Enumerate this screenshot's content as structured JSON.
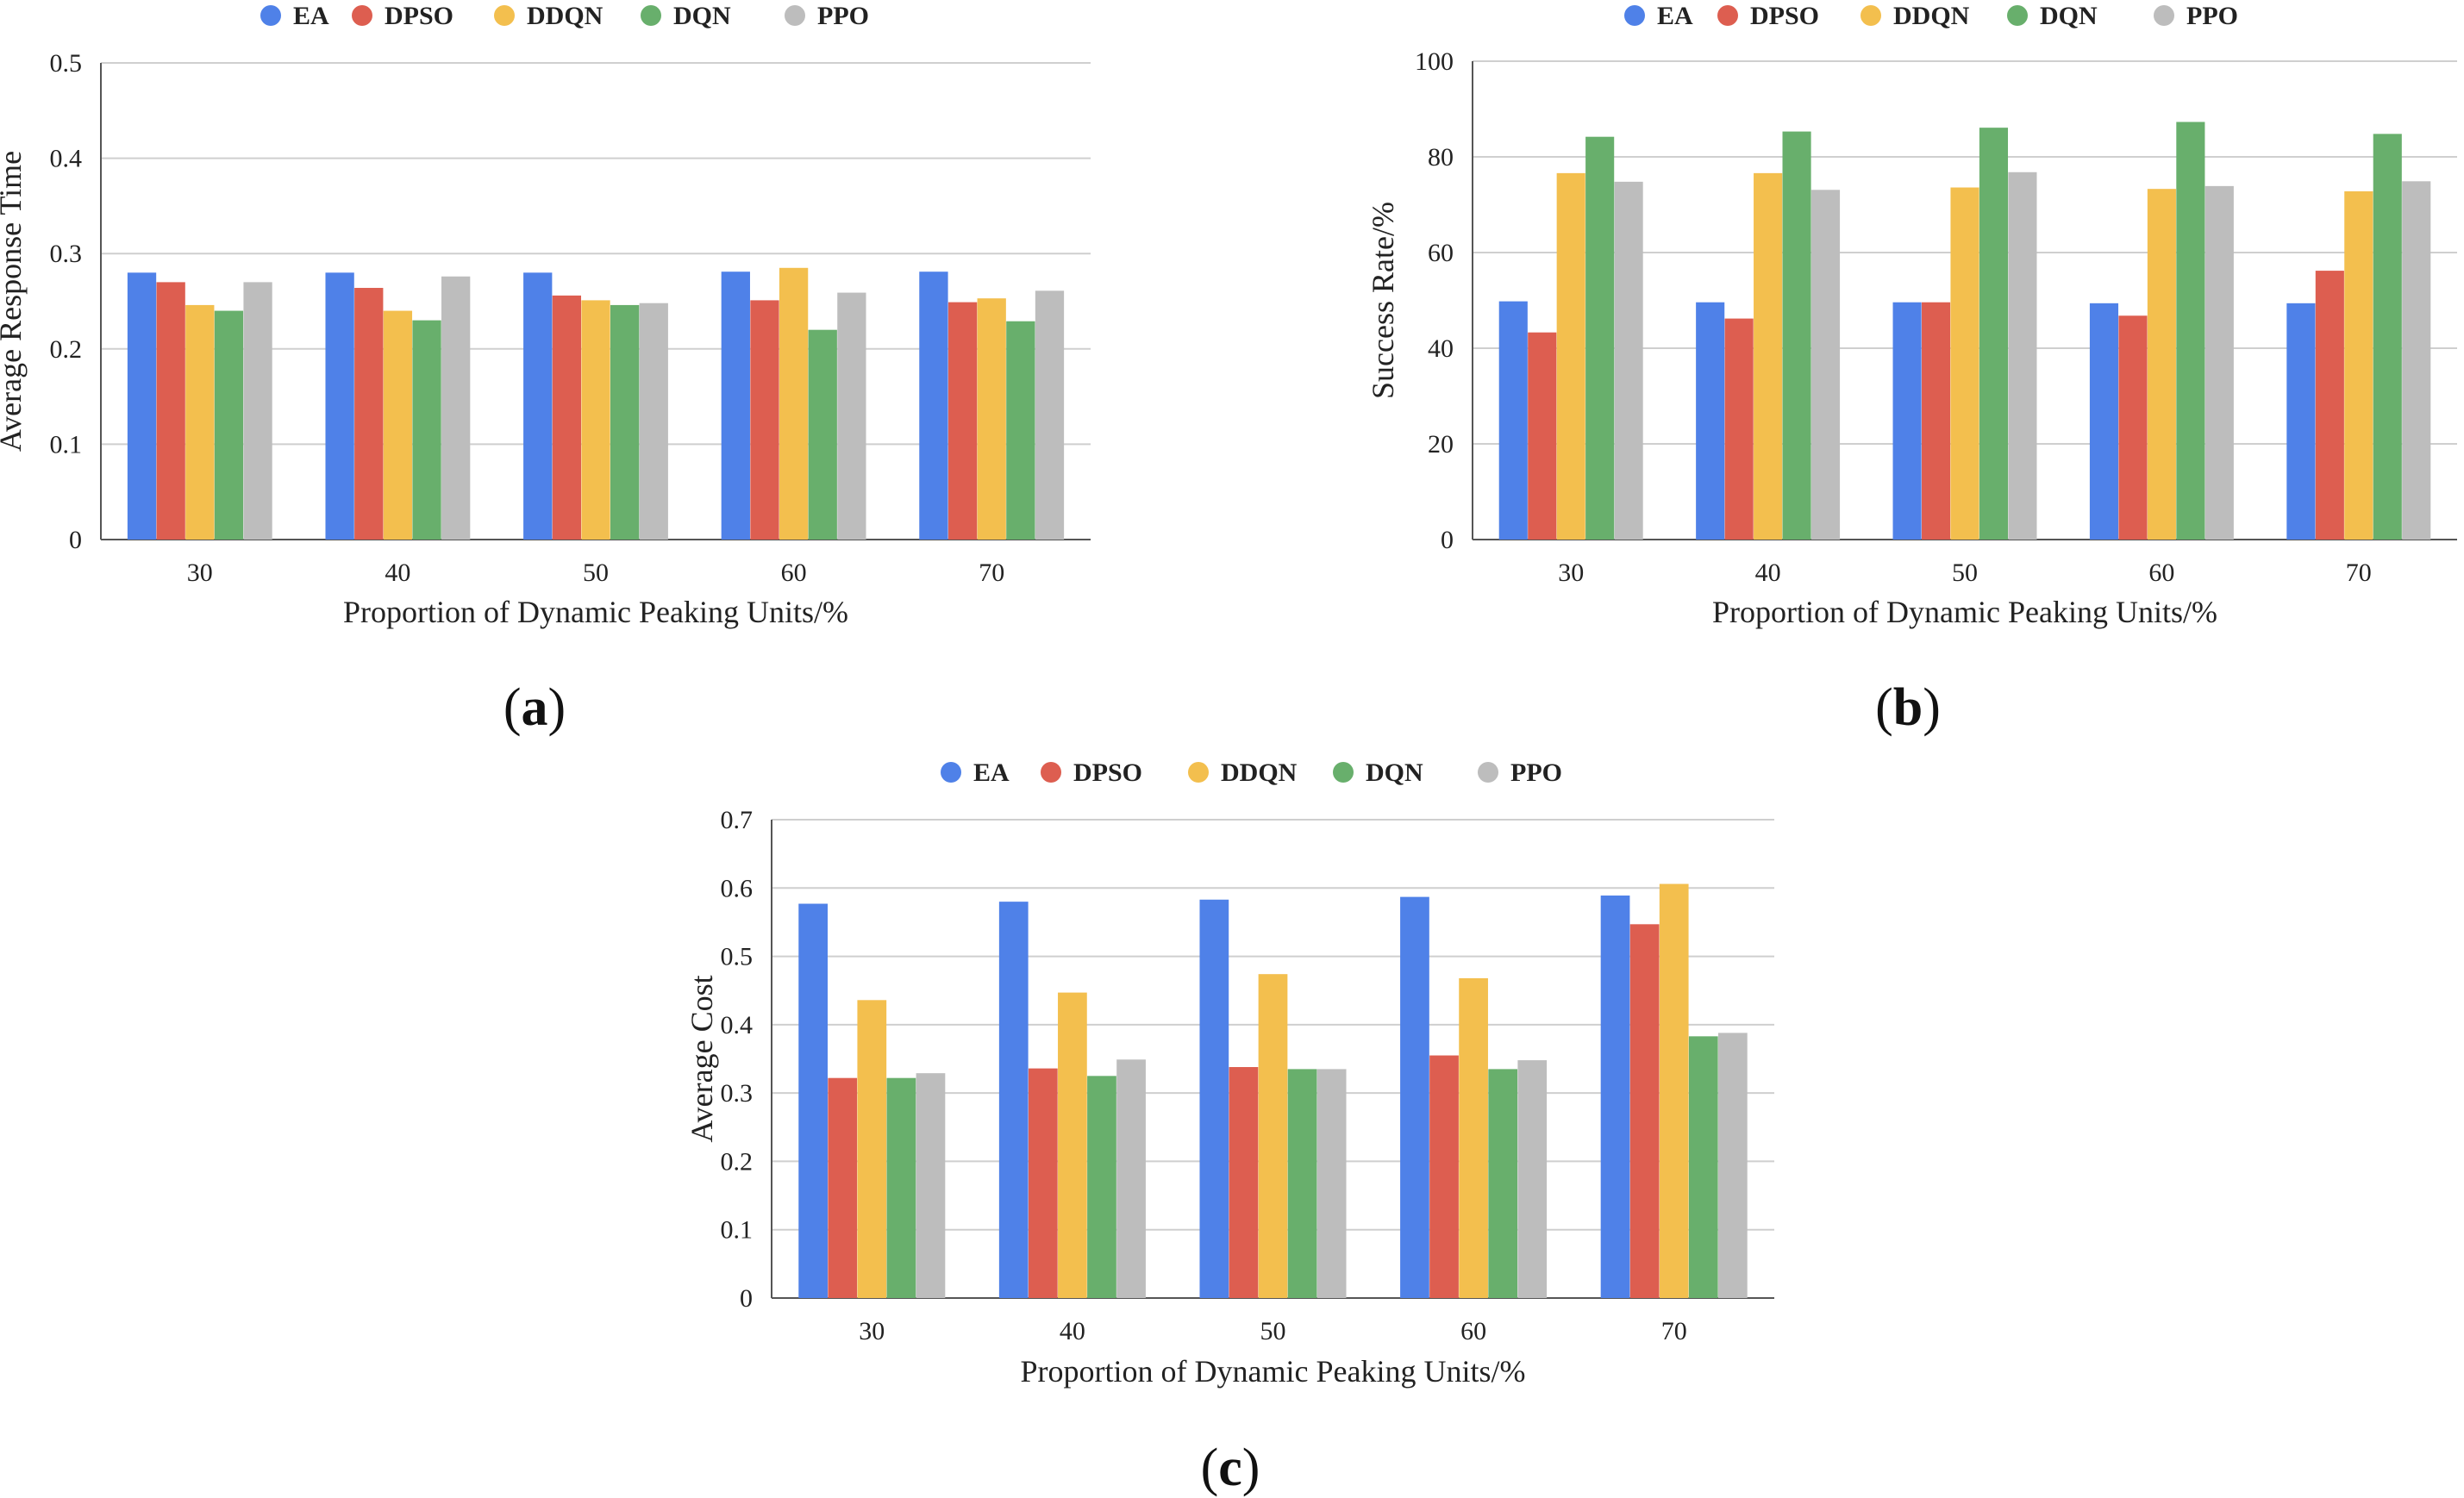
{
  "colors": {
    "EA": "#4F81E8",
    "DPSO": "#DD5E50",
    "DDQN": "#F3BF4E",
    "DQN": "#68AF6C",
    "PPO": "#BDBDBD",
    "grid": "#cfcfcf",
    "axis": "#555555"
  },
  "chart_data": [
    {
      "id": "a",
      "type": "bar",
      "panel_label": "(a)",
      "panel_letter": "a",
      "title": "",
      "xlabel": "Proportion of Dynamic Peaking Units/%",
      "ylabel": "Average Response Time",
      "ylim": [
        0,
        0.5
      ],
      "yticks": [
        "0",
        "0.1",
        "0.2",
        "0.3",
        "0.4",
        "0.5"
      ],
      "ytick_values": [
        0,
        0.1,
        0.2,
        0.3,
        0.4,
        0.5
      ],
      "categories": [
        "30",
        "40",
        "50",
        "60",
        "70"
      ],
      "legend": [
        "EA",
        "DPSO",
        "DDQN",
        "DQN",
        "PPO"
      ],
      "legend_position": "top",
      "series": [
        {
          "name": "EA",
          "values": [
            0.28,
            0.28,
            0.28,
            0.281,
            0.281
          ]
        },
        {
          "name": "DPSO",
          "values": [
            0.27,
            0.264,
            0.256,
            0.251,
            0.249
          ]
        },
        {
          "name": "DDQN",
          "values": [
            0.246,
            0.24,
            0.251,
            0.285,
            0.253
          ]
        },
        {
          "name": "DQN",
          "values": [
            0.24,
            0.23,
            0.246,
            0.22,
            0.229
          ]
        },
        {
          "name": "PPO",
          "values": [
            0.27,
            0.276,
            0.248,
            0.259,
            0.261
          ]
        }
      ]
    },
    {
      "id": "b",
      "type": "bar",
      "panel_label": "(b)",
      "panel_letter": "b",
      "title": "",
      "xlabel": "Proportion of Dynamic Peaking Units/%",
      "ylabel": "Success Rate/%",
      "ylim": [
        0,
        100
      ],
      "yticks": [
        "0",
        "20",
        "40",
        "60",
        "80",
        "100"
      ],
      "ytick_values": [
        0,
        20,
        40,
        60,
        80,
        100
      ],
      "categories": [
        "30",
        "40",
        "50",
        "60",
        "70"
      ],
      "legend": [
        "EA",
        "DPSO",
        "DDQN",
        "DQN",
        "PPO"
      ],
      "legend_position": "top",
      "series": [
        {
          "name": "EA",
          "values": [
            49.8,
            49.6,
            49.6,
            49.4,
            49.4
          ]
        },
        {
          "name": "DPSO",
          "values": [
            43.3,
            46.2,
            49.6,
            46.8,
            56.2
          ]
        },
        {
          "name": "DDQN",
          "values": [
            76.6,
            76.6,
            73.6,
            73.3,
            72.8
          ]
        },
        {
          "name": "DQN",
          "values": [
            84.2,
            85.3,
            86.1,
            87.3,
            84.8
          ]
        },
        {
          "name": "PPO",
          "values": [
            74.8,
            73.1,
            76.8,
            73.9,
            74.9
          ]
        }
      ]
    },
    {
      "id": "c",
      "type": "bar",
      "panel_label": "(c)",
      "panel_letter": "c",
      "title": "",
      "xlabel": "Proportion of Dynamic Peaking Units/%",
      "ylabel": "Average  Cost",
      "ylim": [
        0,
        0.7
      ],
      "yticks": [
        "0",
        "0.1",
        "0.2",
        "0.3",
        "0.4",
        "0.5",
        "0.6",
        "0.7"
      ],
      "ytick_values": [
        0,
        0.1,
        0.2,
        0.3,
        0.4,
        0.5,
        0.6,
        0.7
      ],
      "categories": [
        "30",
        "40",
        "50",
        "60",
        "70"
      ],
      "legend": [
        "EA",
        "DPSO",
        "DDQN",
        "DQN",
        "PPO"
      ],
      "legend_position": "top",
      "series": [
        {
          "name": "EA",
          "values": [
            0.577,
            0.58,
            0.583,
            0.587,
            0.589
          ]
        },
        {
          "name": "DPSO",
          "values": [
            0.322,
            0.336,
            0.338,
            0.355,
            0.547
          ]
        },
        {
          "name": "DDQN",
          "values": [
            0.436,
            0.447,
            0.474,
            0.468,
            0.606
          ]
        },
        {
          "name": "DQN",
          "values": [
            0.322,
            0.325,
            0.335,
            0.335,
            0.383
          ]
        },
        {
          "name": "PPO",
          "values": [
            0.329,
            0.349,
            0.335,
            0.348,
            0.388
          ]
        }
      ]
    }
  ]
}
